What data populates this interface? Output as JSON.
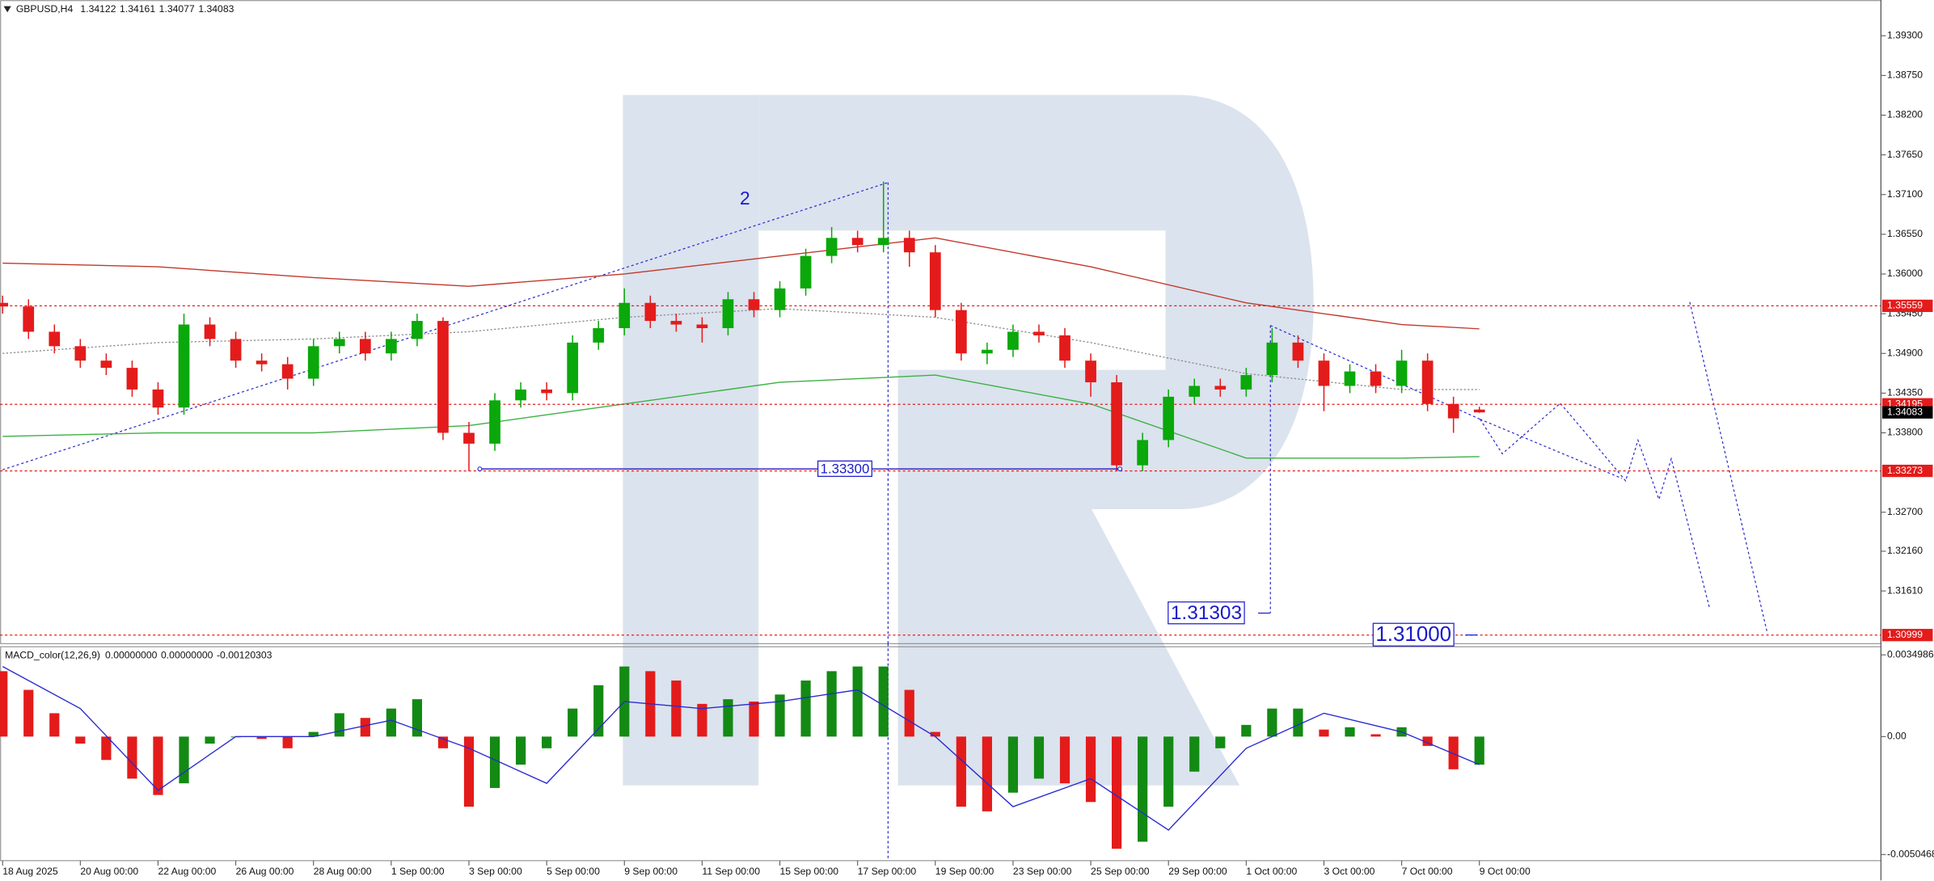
{
  "chart_data": [
    {
      "type": "candlestick",
      "title": "GBPUSD,H4",
      "title_values": [
        1.34122,
        1.34161,
        1.34077,
        1.34083
      ],
      "up_color": "#0aa80a",
      "down_color": "#e41b1b",
      "open": [
        1.356,
        1.3555,
        1.352,
        1.35,
        1.348,
        1.347,
        1.344,
        1.3415,
        1.353,
        1.351,
        1.348,
        1.3475,
        1.3455,
        1.35,
        1.351,
        1.349,
        1.351,
        1.3535,
        1.338,
        1.3365,
        1.3425,
        1.344,
        1.3435,
        1.3505,
        1.3525,
        1.356,
        1.3535,
        1.353,
        1.3525,
        1.3565,
        1.355,
        1.358,
        1.3625,
        1.365,
        1.364,
        1.365,
        1.363,
        1.355,
        1.349,
        1.3495,
        1.352,
        1.3515,
        1.348,
        1.345,
        1.3335,
        1.337,
        1.343,
        1.3445,
        1.344,
        1.346,
        1.3505,
        1.348,
        1.3445,
        1.3465,
        1.3445,
        1.348,
        1.342,
        1.34122
      ],
      "high": [
        1.357,
        1.3565,
        1.353,
        1.351,
        1.349,
        1.348,
        1.345,
        1.3545,
        1.354,
        1.352,
        1.349,
        1.3485,
        1.351,
        1.352,
        1.352,
        1.352,
        1.3545,
        1.354,
        1.3395,
        1.3435,
        1.345,
        1.345,
        1.3515,
        1.3535,
        1.358,
        1.357,
        1.3545,
        1.354,
        1.3575,
        1.3575,
        1.359,
        1.3635,
        1.3665,
        1.366,
        1.3728,
        1.366,
        1.364,
        1.356,
        1.3505,
        1.353,
        1.353,
        1.3525,
        1.349,
        1.346,
        1.338,
        1.344,
        1.3455,
        1.3455,
        1.347,
        1.3525,
        1.3515,
        1.349,
        1.3475,
        1.3475,
        1.3495,
        1.349,
        1.343,
        1.34161
      ],
      "low": [
        1.3545,
        1.351,
        1.349,
        1.347,
        1.346,
        1.343,
        1.3405,
        1.3405,
        1.35,
        1.347,
        1.3465,
        1.344,
        1.3445,
        1.349,
        1.348,
        1.348,
        1.35,
        1.337,
        1.3327,
        1.3355,
        1.3415,
        1.3425,
        1.3425,
        1.3495,
        1.3515,
        1.3525,
        1.352,
        1.3505,
        1.3515,
        1.354,
        1.354,
        1.357,
        1.3615,
        1.363,
        1.363,
        1.361,
        1.354,
        1.348,
        1.3475,
        1.3485,
        1.3505,
        1.347,
        1.343,
        1.3327,
        1.3327,
        1.336,
        1.342,
        1.343,
        1.343,
        1.345,
        1.347,
        1.341,
        1.3435,
        1.3435,
        1.3435,
        1.341,
        1.338,
        1.34077
      ],
      "close": [
        1.3555,
        1.352,
        1.35,
        1.348,
        1.347,
        1.344,
        1.3415,
        1.353,
        1.351,
        1.348,
        1.3475,
        1.3455,
        1.35,
        1.351,
        1.349,
        1.351,
        1.3535,
        1.338,
        1.3365,
        1.3425,
        1.344,
        1.3435,
        1.3505,
        1.3525,
        1.356,
        1.3535,
        1.353,
        1.3525,
        1.3565,
        1.355,
        1.358,
        1.3625,
        1.365,
        1.364,
        1.365,
        1.363,
        1.355,
        1.349,
        1.3495,
        1.352,
        1.3515,
        1.348,
        1.345,
        1.3335,
        1.337,
        1.343,
        1.3445,
        1.344,
        1.346,
        1.3505,
        1.348,
        1.3445,
        1.3465,
        1.3445,
        1.348,
        1.342,
        1.34,
        1.34083
      ],
      "lines": [
        {
          "color": "#c0392b",
          "dotted": false,
          "x": [
            0,
            6,
            12,
            18,
            24,
            30,
            36,
            42,
            48,
            54,
            57
          ],
          "values": [
            1.3615,
            1.361,
            1.3595,
            1.3583,
            1.36,
            1.3625,
            1.365,
            1.361,
            1.356,
            1.353,
            1.3524
          ]
        },
        {
          "color": "#909090",
          "dotted": true,
          "x": [
            0,
            6,
            12,
            18,
            24,
            30,
            36,
            42,
            48,
            54,
            57
          ],
          "values": [
            1.349,
            1.3505,
            1.351,
            1.352,
            1.354,
            1.3552,
            1.354,
            1.3505,
            1.3462,
            1.344,
            1.344
          ]
        },
        {
          "color": "#3cb043",
          "dotted": false,
          "x": [
            0,
            6,
            12,
            18,
            24,
            30,
            36,
            42,
            48,
            54,
            57
          ],
          "values": [
            1.3375,
            1.338,
            1.338,
            1.339,
            1.342,
            1.345,
            1.346,
            1.342,
            1.3345,
            1.3345,
            1.3347
          ]
        }
      ],
      "levels": [
        {
          "value": 1.35559,
          "color": "#e41b1b"
        },
        {
          "value": 1.34195,
          "color": "#e41b1b"
        },
        {
          "value": 1.33273,
          "color": "#e41b1b"
        },
        {
          "value": 1.30999,
          "color": "#e41b1b"
        }
      ],
      "current_price": {
        "value": 1.34083,
        "color": "#000000"
      },
      "annotations": [
        {
          "text": "2"
        },
        {
          "value": 1.333,
          "label": "1.33300"
        },
        {
          "value": 1.31303,
          "label": "1.31303"
        },
        {
          "value": 1.31,
          "label": "1.31000"
        }
      ],
      "annotation_color": "#1a1acc",
      "xlim": [
        -0.1,
        72.5
      ],
      "xticks": [
        {
          "value": 0,
          "label": "18 Aug 2025"
        },
        {
          "value": 3,
          "label": "20 Aug 00:00"
        },
        {
          "value": 6,
          "label": "22 Aug 00:00"
        },
        {
          "value": 9,
          "label": "26 Aug 00:00"
        },
        {
          "value": 12,
          "label": "28 Aug 00:00"
        },
        {
          "value": 15,
          "label": "1 Sep 00:00"
        },
        {
          "value": 18,
          "label": "3 Sep 00:00"
        },
        {
          "value": 21,
          "label": "5 Sep 00:00"
        },
        {
          "value": 24,
          "label": "9 Sep 00:00"
        },
        {
          "value": 27,
          "label": "11 Sep 00:00"
        },
        {
          "value": 30,
          "label": "15 Sep 00:00"
        },
        {
          "value": 33,
          "label": "17 Sep 00:00"
        },
        {
          "value": 36,
          "label": "19 Sep 00:00"
        },
        {
          "value": 39,
          "label": "23 Sep 00:00"
        },
        {
          "value": 42,
          "label": "25 Sep 00:00"
        },
        {
          "value": 45,
          "label": "29 Sep 00:00"
        },
        {
          "value": 48,
          "label": "1 Oct 00:00"
        },
        {
          "value": 51,
          "label": "3 Oct 00:00"
        },
        {
          "value": 54,
          "label": "7 Oct 00:00"
        },
        {
          "value": 57,
          "label": "9 Oct 00:00"
        }
      ],
      "ylim": [
        1.3088,
        1.39795
      ],
      "yticks": [
        {
          "value": 1.393,
          "label": "1.39300"
        },
        {
          "value": 1.3875,
          "label": "1.38750"
        },
        {
          "value": 1.382,
          "label": "1.38200"
        },
        {
          "value": 1.3765,
          "label": "1.37650"
        },
        {
          "value": 1.371,
          "label": "1.37100"
        },
        {
          "value": 1.3655,
          "label": "1.36550"
        },
        {
          "value": 1.36,
          "label": "1.36000"
        },
        {
          "value": 1.3545,
          "label": "1.35450"
        },
        {
          "value": 1.349,
          "label": "1.34900"
        },
        {
          "value": 1.3435,
          "label": "1.34350"
        },
        {
          "value": 1.338,
          "label": "1.33800"
        },
        {
          "value": 1.327,
          "label": "1.32700"
        },
        {
          "value": 1.3216,
          "label": "1.32160"
        },
        {
          "value": 1.3161,
          "label": "1.31610"
        }
      ]
    },
    {
      "type": "bar",
      "title": "MACD_color(12,26,9)",
      "title_values": [
        {
          "value": 0,
          "label": "0.00000000"
        },
        {
          "value": 0,
          "label": "0.00000000"
        },
        -0.00120303
      ],
      "up_color": "#138a13",
      "down_color": "#e41b1b",
      "values": [
        0.0028,
        0.002,
        0.001,
        -0.0003,
        -0.001,
        -0.0018,
        -0.0025,
        -0.002,
        -0.0003,
        0.0,
        -0.0001,
        -0.0005,
        0.0002,
        0.001,
        0.0008,
        0.0012,
        0.0016,
        -0.0005,
        -0.003,
        -0.0022,
        -0.0012,
        -0.0005,
        0.0012,
        0.0022,
        0.003,
        0.0028,
        0.0024,
        0.0014,
        0.0016,
        0.0015,
        0.0018,
        0.0024,
        0.0028,
        0.003,
        0.003,
        0.002,
        0.0002,
        -0.003,
        -0.0032,
        -0.0024,
        -0.0018,
        -0.002,
        -0.0028,
        -0.0048,
        -0.0045,
        -0.003,
        -0.0015,
        -0.0005,
        0.0005,
        0.0012,
        0.0012,
        0.0003,
        0.0004,
        0.0001,
        0.0004,
        -0.0004,
        -0.0014,
        -0.0012
      ],
      "lines": [
        {
          "color": "#2a2ad0",
          "dotted": false,
          "x": [
            0,
            3,
            6,
            9,
            12,
            15,
            18,
            21,
            24,
            27,
            30,
            33,
            36,
            39,
            42,
            45,
            48,
            51,
            54,
            57
          ],
          "values": [
            0.003,
            0.0012,
            -0.0023,
            0.0,
            0.0,
            0.0007,
            -0.0005,
            -0.002,
            0.0015,
            0.0012,
            0.0015,
            0.002,
            0.0,
            -0.003,
            -0.0018,
            -0.004,
            -0.0005,
            0.001,
            0.0002,
            -0.0012
          ]
        }
      ],
      "xlim": [
        -0.1,
        72.5
      ],
      "ylim": [
        -0.00531,
        0.00382
      ],
      "yticks": [
        0.0034986,
        {
          "value": 0,
          "label": "0.00"
        },
        -0.0050468
      ]
    }
  ]
}
